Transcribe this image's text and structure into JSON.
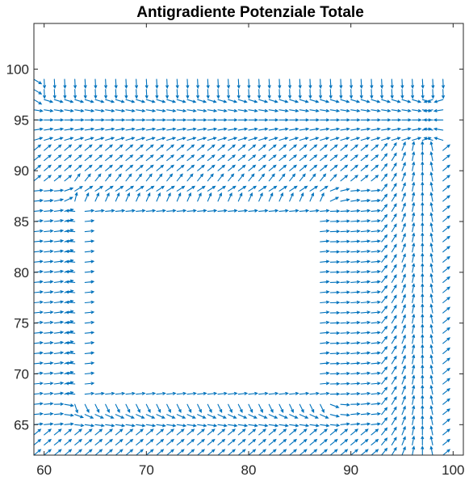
{
  "chart_data": {
    "type": "quiver",
    "title": "Antigradiente Potenziale Totale",
    "xlabel": "",
    "ylabel": "",
    "xlim": [
      59,
      101
    ],
    "ylim": [
      62,
      104.5
    ],
    "x_ticks": [
      60,
      70,
      80,
      90,
      100
    ],
    "y_ticks": [
      65,
      70,
      75,
      80,
      85,
      90,
      95,
      100
    ],
    "grid": false,
    "legend": "none",
    "arrow_color": "#0072BD",
    "field": {
      "x_range": [
        59,
        99
      ],
      "y_range": [
        62,
        99
      ],
      "step": 1,
      "obstacle": {
        "x": [
          64,
          87
        ],
        "y": [
          68,
          86
        ]
      },
      "attraction_corridor": {
        "y": [
          93,
          97
        ]
      },
      "attraction_column": {
        "x": [
          93,
          98
        ]
      },
      "goal": [
        97,
        95
      ]
    }
  }
}
